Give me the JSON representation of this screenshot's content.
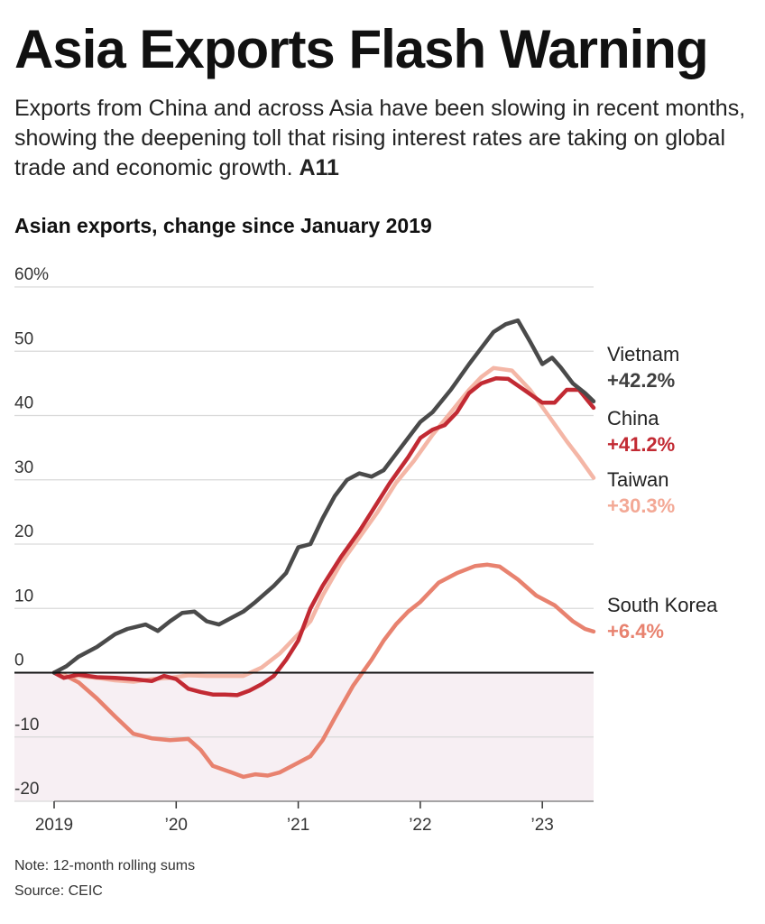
{
  "headline": "Asia Exports Flash Warning",
  "dek": {
    "text": "Exports from China and across Asia have been slowing in recent months, showing the deepening toll that rising interest rates are taking on global trade and economic growth.",
    "ref": "A11"
  },
  "chart_data": {
    "type": "line",
    "title": "Asian exports, change since January 2019",
    "xlabel": "",
    "ylabel": "",
    "xlim": [
      2019.0,
      2023.42
    ],
    "ylim": [
      -20,
      60
    ],
    "yticks": [
      {
        "value": 60,
        "label": "60%"
      },
      {
        "value": 50,
        "label": "50"
      },
      {
        "value": 40,
        "label": "40"
      },
      {
        "value": 30,
        "label": "30"
      },
      {
        "value": 20,
        "label": "20"
      },
      {
        "value": 10,
        "label": "10"
      },
      {
        "value": 0,
        "label": "0"
      },
      {
        "value": -10,
        "label": "-10"
      },
      {
        "value": -20,
        "label": "-20"
      }
    ],
    "xticks": [
      {
        "value": 2019,
        "label": "2019"
      },
      {
        "value": 2020,
        "label": "’20"
      },
      {
        "value": 2021,
        "label": "’21"
      },
      {
        "value": 2022,
        "label": "’22"
      },
      {
        "value": 2023,
        "label": "’23"
      }
    ],
    "grid": true,
    "legend": "direct labels at right end of lines",
    "series": [
      {
        "name": "South Korea",
        "end_label": "+6.4%",
        "color": "#e8826f",
        "label_color": "#e8826f",
        "x": [
          2019.0,
          2019.1,
          2019.2,
          2019.35,
          2019.5,
          2019.65,
          2019.8,
          2019.95,
          2020.1,
          2020.2,
          2020.3,
          2020.45,
          2020.55,
          2020.65,
          2020.75,
          2020.85,
          2021.0,
          2021.1,
          2021.2,
          2021.3,
          2021.45,
          2021.6,
          2021.7,
          2021.8,
          2021.9,
          2022.0,
          2022.15,
          2022.3,
          2022.45,
          2022.55,
          2022.65,
          2022.8,
          2022.95,
          2023.1,
          2023.25,
          2023.35,
          2023.42
        ],
        "y": [
          0.0,
          -0.5,
          -1.5,
          -4.0,
          -6.8,
          -9.5,
          -10.2,
          -10.5,
          -10.3,
          -12.0,
          -14.5,
          -15.5,
          -16.2,
          -15.8,
          -16.0,
          -15.5,
          -14.0,
          -13.0,
          -10.5,
          -7.0,
          -2.0,
          2.0,
          5.0,
          7.5,
          9.5,
          11.0,
          14.0,
          15.5,
          16.6,
          16.8,
          16.5,
          14.5,
          12.0,
          10.5,
          8.0,
          6.8,
          6.4
        ]
      },
      {
        "name": "Taiwan",
        "end_label": "+30.3%",
        "color": "#f4b6a6",
        "label_color": "#f3a895",
        "x": [
          2019.0,
          2019.1,
          2019.2,
          2019.35,
          2019.5,
          2019.65,
          2019.8,
          2019.95,
          2020.1,
          2020.25,
          2020.4,
          2020.55,
          2020.7,
          2020.85,
          2021.0,
          2021.1,
          2021.2,
          2021.35,
          2021.5,
          2021.65,
          2021.8,
          2021.95,
          2022.1,
          2022.25,
          2022.4,
          2022.5,
          2022.6,
          2022.75,
          2022.9,
          2023.05,
          2023.2,
          2023.3,
          2023.42
        ],
        "y": [
          0.0,
          -0.6,
          -0.5,
          -0.8,
          -1.2,
          -1.4,
          -1.0,
          -0.8,
          -0.4,
          -0.5,
          -0.5,
          -0.5,
          0.8,
          3.0,
          6.0,
          8.0,
          12.0,
          17.0,
          21.0,
          25.0,
          29.5,
          33.0,
          37.0,
          40.5,
          44.0,
          46.0,
          47.4,
          47.0,
          44.0,
          40.0,
          36.0,
          33.5,
          30.3
        ]
      },
      {
        "name": "China",
        "end_label": "+41.2%",
        "color": "#c22a33",
        "label_color": "#c22a33",
        "x": [
          2019.0,
          2019.08,
          2019.2,
          2019.35,
          2019.5,
          2019.65,
          2019.8,
          2019.9,
          2020.0,
          2020.1,
          2020.2,
          2020.3,
          2020.4,
          2020.5,
          2020.6,
          2020.7,
          2020.8,
          2020.9,
          2021.0,
          2021.1,
          2021.2,
          2021.35,
          2021.5,
          2021.6,
          2021.75,
          2021.9,
          2022.0,
          2022.1,
          2022.2,
          2022.3,
          2022.4,
          2022.5,
          2022.62,
          2022.72,
          2022.85,
          2023.0,
          2023.1,
          2023.2,
          2023.3,
          2023.42
        ],
        "y": [
          0.0,
          -0.8,
          -0.3,
          -0.7,
          -0.8,
          -1.0,
          -1.3,
          -0.5,
          -1.0,
          -2.5,
          -3.0,
          -3.4,
          -3.4,
          -3.5,
          -2.8,
          -1.8,
          -0.5,
          2.0,
          5.0,
          10.0,
          13.5,
          18.0,
          22.0,
          25.0,
          29.5,
          33.5,
          36.5,
          37.8,
          38.5,
          40.5,
          43.5,
          45.0,
          45.8,
          45.7,
          44.0,
          42.0,
          42.0,
          44.0,
          44.0,
          41.2
        ]
      },
      {
        "name": "Vietnam",
        "end_label": "+42.2%",
        "color": "#4a4a4a",
        "label_color": "#3f3f3f",
        "x": [
          2019.0,
          2019.1,
          2019.2,
          2019.35,
          2019.5,
          2019.6,
          2019.75,
          2019.85,
          2019.95,
          2020.05,
          2020.15,
          2020.25,
          2020.35,
          2020.45,
          2020.55,
          2020.65,
          2020.8,
          2020.9,
          2021.0,
          2021.1,
          2021.2,
          2021.3,
          2021.4,
          2021.5,
          2021.6,
          2021.7,
          2021.8,
          2021.9,
          2022.0,
          2022.1,
          2022.25,
          2022.4,
          2022.5,
          2022.6,
          2022.7,
          2022.8,
          2022.9,
          2023.0,
          2023.08,
          2023.15,
          2023.25,
          2023.35,
          2023.42
        ],
        "y": [
          0.0,
          1.0,
          2.5,
          4.0,
          6.0,
          6.8,
          7.5,
          6.5,
          8.0,
          9.3,
          9.5,
          8.0,
          7.5,
          8.5,
          9.5,
          11.0,
          13.5,
          15.5,
          19.5,
          20.0,
          24.0,
          27.5,
          30.0,
          31.0,
          30.5,
          31.5,
          34.0,
          36.5,
          39.0,
          40.5,
          44.0,
          48.0,
          50.5,
          53.0,
          54.2,
          54.8,
          51.5,
          48.0,
          49.0,
          47.5,
          45.0,
          43.5,
          42.2
        ]
      }
    ],
    "label_order": [
      "Vietnam",
      "China",
      "Taiwan",
      "South Korea"
    ],
    "label_anchor_y": [
      48.5,
      38.5,
      29.0,
      9.5
    ],
    "colors": {
      "negative_band": "#f7eff3",
      "gridline": "#d9d9d9",
      "zero_line": "#111111"
    }
  },
  "notes": {
    "note": "Note: 12-month rolling sums",
    "source": "Source: CEIC"
  }
}
